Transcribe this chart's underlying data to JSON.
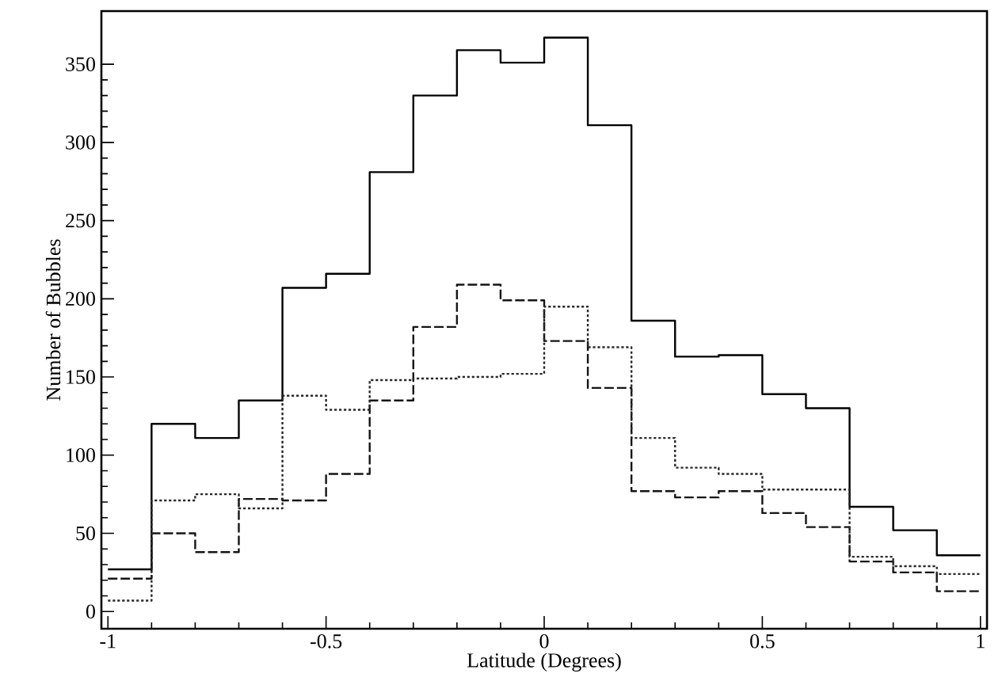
{
  "chart_data": {
    "type": "histogram",
    "xlabel": "Latitude (Degrees)",
    "ylabel": "Number of Bubbles",
    "bins": [
      -1,
      -0.9,
      -0.8,
      -0.7,
      -0.6,
      -0.5,
      -0.4,
      -0.3,
      -0.2,
      -0.1,
      0,
      0.1,
      0.2,
      0.3,
      0.4,
      0.5,
      0.6,
      0.7,
      0.8,
      0.9,
      1
    ],
    "series": [
      {
        "color": "#000000",
        "line_style": "solid",
        "values": [
          27,
          120,
          111,
          135,
          207,
          216,
          281,
          330,
          359,
          351,
          367,
          311,
          186,
          163,
          164,
          139,
          130,
          67,
          52,
          36
        ]
      },
      {
        "color": "#141414",
        "line_style": "dashed",
        "values": [
          21,
          50,
          38,
          72,
          71,
          88,
          135,
          182,
          209,
          199,
          173,
          143,
          77,
          73,
          77,
          63,
          54,
          32,
          25,
          13
        ]
      },
      {
        "color": "#282828",
        "line_style": "dotted",
        "values": [
          7,
          71,
          75,
          66,
          138,
          129,
          148,
          149,
          150,
          152,
          195,
          169,
          111,
          92,
          88,
          78,
          78,
          35,
          29,
          24
        ]
      }
    ],
    "xlim": [
      -1.015,
      1.015
    ],
    "ylim": [
      -11,
      384
    ],
    "xticks": [
      -1,
      -0.5,
      0,
      0.5,
      1
    ],
    "yticks": [
      0,
      50,
      100,
      150,
      200,
      250,
      300,
      350
    ]
  }
}
